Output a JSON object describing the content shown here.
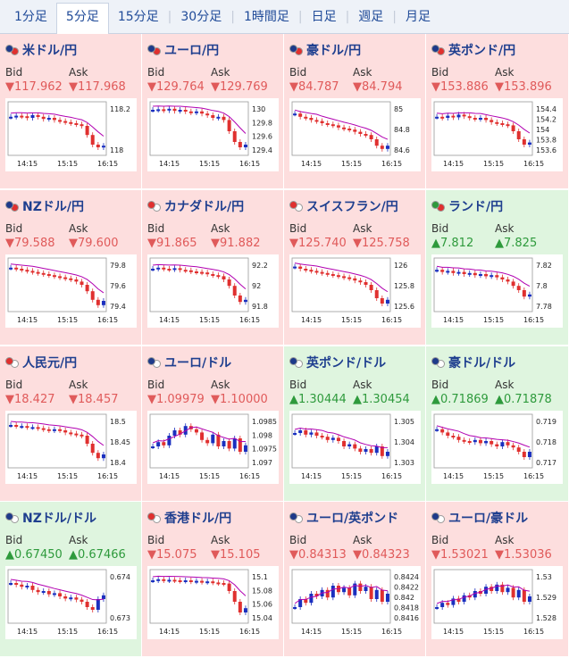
{
  "tabs": [
    "1分足",
    "5分足",
    "15分足",
    "30分足",
    "1時間足",
    "日足",
    "週足",
    "月足"
  ],
  "active_tab_index": 1,
  "labels": {
    "bid": "Bid",
    "ask": "Ask"
  },
  "colors": {
    "down_bg": "#fddede",
    "up_bg": "#dff5df",
    "down_text": "#e05a5a",
    "up_text": "#2e9a3c",
    "candle_up": "#1a2fbf",
    "candle_down": "#e0302f",
    "ma": "#b100b1"
  },
  "time_labels": [
    "14:15",
    "15:15",
    "16:15"
  ],
  "pairs": [
    {
      "name": "米ドル/円",
      "dir": "down",
      "bid": "▼117.962",
      "ask": "▼117.968",
      "flags": [
        "#1e3a8a",
        "#e0302f"
      ],
      "y_ticks": [
        "118.2",
        "118"
      ],
      "series": [
        0.72,
        0.74,
        0.73,
        0.7,
        0.75,
        0.72,
        0.68,
        0.7,
        0.66,
        0.64,
        0.62,
        0.6,
        0.58,
        0.55,
        0.38,
        0.2,
        0.15,
        0.18
      ]
    },
    {
      "name": "ユーロ/円",
      "dir": "down",
      "bid": "▼129.764",
      "ask": "▼129.769",
      "flags": [
        "#1e3a8a",
        "#e0302f"
      ],
      "y_ticks": [
        "130",
        "129.8",
        "129.6",
        "129.4"
      ],
      "series": [
        0.85,
        0.86,
        0.84,
        0.87,
        0.83,
        0.85,
        0.82,
        0.8,
        0.82,
        0.78,
        0.75,
        0.7,
        0.72,
        0.66,
        0.45,
        0.25,
        0.15,
        0.2
      ]
    },
    {
      "name": "豪ドル/円",
      "dir": "down",
      "bid": "▼84.787",
      "ask": "▼84.794",
      "flags": [
        "#1e3a8a",
        "#e0302f"
      ],
      "y_ticks": [
        "85",
        "84.8",
        "84.6"
      ],
      "series": [
        0.78,
        0.72,
        0.7,
        0.66,
        0.64,
        0.6,
        0.58,
        0.56,
        0.52,
        0.5,
        0.48,
        0.44,
        0.4,
        0.38,
        0.3,
        0.18,
        0.12,
        0.18
      ]
    },
    {
      "name": "英ポンド/円",
      "dir": "down",
      "bid": "▼153.886",
      "ask": "▼153.896",
      "flags": [
        "#1e3a8a",
        "#e0302f"
      ],
      "y_ticks": [
        "154.4",
        "154.2",
        "154",
        "153.8",
        "153.6"
      ],
      "series": [
        0.72,
        0.7,
        0.74,
        0.71,
        0.76,
        0.73,
        0.7,
        0.68,
        0.7,
        0.66,
        0.62,
        0.6,
        0.58,
        0.56,
        0.45,
        0.3,
        0.2,
        0.24
      ]
    },
    {
      "name": "NZドル/円",
      "dir": "down",
      "bid": "▼79.588",
      "ask": "▼79.600",
      "flags": [
        "#1e3a8a",
        "#e0302f"
      ],
      "y_ticks": [
        "79.8",
        "79.6",
        "79.4"
      ],
      "series": [
        0.82,
        0.8,
        0.78,
        0.76,
        0.74,
        0.72,
        0.7,
        0.68,
        0.66,
        0.64,
        0.62,
        0.6,
        0.56,
        0.5,
        0.38,
        0.22,
        0.12,
        0.2
      ]
    },
    {
      "name": "カナダドル/円",
      "dir": "down",
      "bid": "▼91.865",
      "ask": "▼91.882",
      "flags": [
        "#e0302f",
        "#e0302f"
      ],
      "y_ticks": [
        "92.2",
        "92",
        "91.8"
      ],
      "series": [
        0.8,
        0.82,
        0.8,
        0.79,
        0.81,
        0.78,
        0.77,
        0.75,
        0.74,
        0.73,
        0.7,
        0.68,
        0.66,
        0.6,
        0.48,
        0.3,
        0.18,
        0.22
      ]
    },
    {
      "name": "スイスフラン/円",
      "dir": "down",
      "bid": "▼125.740",
      "ask": "▼125.758",
      "flags": [
        "#e0302f",
        "#e0302f"
      ],
      "y_ticks": [
        "126",
        "125.8",
        "125.6"
      ],
      "series": [
        0.84,
        0.8,
        0.78,
        0.76,
        0.74,
        0.72,
        0.7,
        0.68,
        0.66,
        0.64,
        0.62,
        0.58,
        0.55,
        0.5,
        0.4,
        0.25,
        0.15,
        0.22
      ]
    },
    {
      "name": "ランド/円",
      "dir": "up",
      "bid": "▲7.812",
      "ask": "▲7.825",
      "flags": [
        "#2e9a3c",
        "#e0302f"
      ],
      "y_ticks": [
        "7.82",
        "7.8",
        "7.78"
      ],
      "series": [
        0.78,
        0.74,
        0.76,
        0.72,
        0.74,
        0.7,
        0.72,
        0.68,
        0.7,
        0.66,
        0.68,
        0.64,
        0.6,
        0.56,
        0.48,
        0.4,
        0.28,
        0.32
      ]
    },
    {
      "name": "人民元/円",
      "dir": "down",
      "bid": "▼18.427",
      "ask": "▼18.457",
      "flags": [
        "#e0302f",
        "#e0302f"
      ],
      "y_ticks": [
        "18.5",
        "18.45",
        "18.4"
      ],
      "series": [
        0.8,
        0.78,
        0.78,
        0.76,
        0.76,
        0.74,
        0.72,
        0.7,
        0.72,
        0.7,
        0.66,
        0.64,
        0.62,
        0.6,
        0.45,
        0.28,
        0.18,
        0.25
      ]
    },
    {
      "name": "ユーロ/ドル",
      "dir": "down",
      "bid": "▼1.09979",
      "ask": "▼1.10000",
      "flags": [
        "#1e3a8a",
        "#1e3a8a"
      ],
      "y_ticks": [
        "1.0985",
        "1.098",
        "1.0975",
        "1.097"
      ],
      "series": [
        0.4,
        0.48,
        0.42,
        0.6,
        0.7,
        0.62,
        0.78,
        0.72,
        0.66,
        0.52,
        0.46,
        0.62,
        0.4,
        0.5,
        0.36,
        0.55,
        0.3,
        0.42
      ]
    },
    {
      "name": "英ポンド/ドル",
      "dir": "up",
      "bid": "▲1.30444",
      "ask": "▲1.30454",
      "flags": [
        "#1e3a8a",
        "#1e3a8a"
      ],
      "y_ticks": [
        "1.305",
        "1.304",
        "1.303"
      ],
      "series": [
        0.65,
        0.7,
        0.62,
        0.66,
        0.6,
        0.58,
        0.52,
        0.56,
        0.5,
        0.4,
        0.44,
        0.36,
        0.3,
        0.35,
        0.28,
        0.4,
        0.22,
        0.3
      ]
    },
    {
      "name": "豪ドル/ドル",
      "dir": "up",
      "bid": "▲0.71869",
      "ask": "▲0.71878",
      "flags": [
        "#1e3a8a",
        "#1e3a8a"
      ],
      "y_ticks": [
        "0.719",
        "0.718",
        "0.717"
      ],
      "series": [
        0.72,
        0.66,
        0.6,
        0.58,
        0.52,
        0.5,
        0.48,
        0.52,
        0.46,
        0.5,
        0.44,
        0.4,
        0.48,
        0.42,
        0.38,
        0.3,
        0.2,
        0.3
      ]
    },
    {
      "name": "NZドル/ドル",
      "dir": "up",
      "bid": "▲0.67450",
      "ask": "▲0.67466",
      "flags": [
        "#1e3a8a",
        "#1e3a8a"
      ],
      "y_ticks": [
        "0.674",
        "0.673"
      ],
      "series": [
        0.75,
        0.72,
        0.68,
        0.7,
        0.62,
        0.58,
        0.6,
        0.54,
        0.56,
        0.5,
        0.46,
        0.48,
        0.44,
        0.4,
        0.3,
        0.25,
        0.45,
        0.52
      ]
    },
    {
      "name": "香港ドル/円",
      "dir": "down",
      "bid": "▼15.075",
      "ask": "▼15.105",
      "flags": [
        "#e0302f",
        "#e0302f"
      ],
      "y_ticks": [
        "15.1",
        "15.08",
        "15.06",
        "15.04"
      ],
      "series": [
        0.8,
        0.82,
        0.8,
        0.81,
        0.8,
        0.79,
        0.8,
        0.78,
        0.79,
        0.77,
        0.78,
        0.76,
        0.75,
        0.74,
        0.6,
        0.4,
        0.2,
        0.28
      ]
    },
    {
      "name": "ユーロ/英ポンド",
      "dir": "down",
      "bid": "▼0.84313",
      "ask": "▼0.84323",
      "flags": [
        "#1e3a8a",
        "#1e3a8a"
      ],
      "y_ticks": [
        "0.8424",
        "0.8422",
        "0.842",
        "0.8418",
        "0.8416"
      ],
      "series": [
        0.3,
        0.45,
        0.38,
        0.55,
        0.5,
        0.62,
        0.48,
        0.7,
        0.58,
        0.66,
        0.52,
        0.74,
        0.6,
        0.68,
        0.45,
        0.62,
        0.4,
        0.55
      ]
    },
    {
      "name": "ユーロ/豪ドル",
      "dir": "down",
      "bid": "▼1.53021",
      "ask": "▼1.53036",
      "flags": [
        "#1e3a8a",
        "#1e3a8a"
      ],
      "y_ticks": [
        "1.53",
        "1.529",
        "1.528"
      ],
      "series": [
        0.3,
        0.38,
        0.34,
        0.46,
        0.4,
        0.52,
        0.48,
        0.6,
        0.55,
        0.68,
        0.6,
        0.72,
        0.58,
        0.66,
        0.48,
        0.62,
        0.4,
        0.5
      ]
    }
  ]
}
